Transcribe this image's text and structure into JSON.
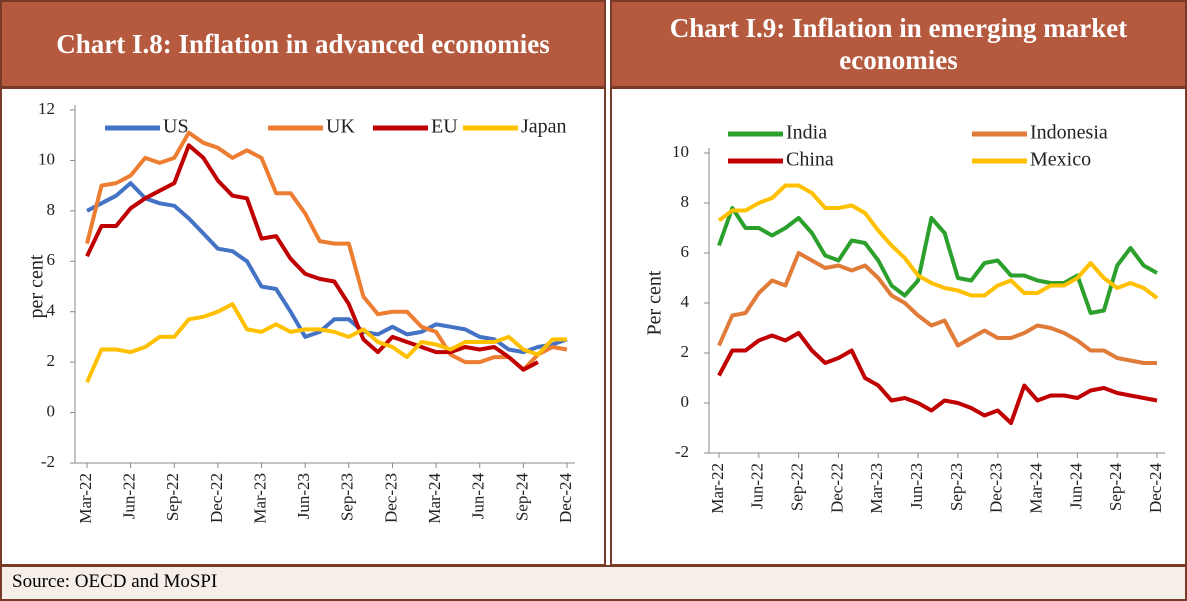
{
  "chart_data": [
    {
      "type": "line",
      "title": "Chart I.8: Inflation in advanced economies",
      "ylabel": "per cent",
      "categories": [
        "Mar-22",
        null,
        null,
        "Jun-22",
        null,
        null,
        "Sep-22",
        null,
        null,
        "Dec-22",
        null,
        null,
        "Mar-23",
        null,
        null,
        "Jun-23",
        null,
        null,
        "Sep-23",
        null,
        null,
        "Dec-23",
        null,
        null,
        "Mar-24",
        null,
        null,
        "Jun-24",
        null,
        null,
        "Sep-24",
        null,
        null,
        "Dec-24"
      ],
      "series": [
        {
          "name": "US",
          "color": "#4472c4",
          "values": [
            8.0,
            8.3,
            8.6,
            9.1,
            8.5,
            8.3,
            8.2,
            7.7,
            7.1,
            6.5,
            6.4,
            6.0,
            5.0,
            4.9,
            4.0,
            3.0,
            3.2,
            3.7,
            3.7,
            3.2,
            3.1,
            3.4,
            3.1,
            3.2,
            3.5,
            3.4,
            3.3,
            3.0,
            2.9,
            2.5,
            2.4,
            2.6,
            2.7,
            2.9
          ]
        },
        {
          "name": "UK",
          "color": "#ed7d31",
          "values": [
            6.7,
            9.0,
            9.1,
            9.4,
            10.1,
            9.9,
            10.1,
            11.1,
            10.7,
            10.5,
            10.1,
            10.4,
            10.1,
            8.7,
            8.7,
            7.9,
            6.8,
            6.7,
            6.7,
            4.6,
            3.9,
            4.0,
            4.0,
            3.4,
            3.2,
            2.3,
            2.0,
            2.0,
            2.2,
            2.2,
            1.7,
            2.3,
            2.6,
            2.5
          ]
        },
        {
          "name": "EU",
          "color": "#c00000",
          "values": [
            6.2,
            7.4,
            7.4,
            8.1,
            8.5,
            8.8,
            9.1,
            10.6,
            10.1,
            9.2,
            8.6,
            8.5,
            6.9,
            7.0,
            6.1,
            5.5,
            5.3,
            5.2,
            4.3,
            2.9,
            2.4,
            3.0,
            2.8,
            2.6,
            2.4,
            2.4,
            2.6,
            2.5,
            2.6,
            2.2,
            1.7,
            2.0,
            null,
            null
          ]
        },
        {
          "name": "Japan",
          "color": "#ffc000",
          "values": [
            1.2,
            2.5,
            2.5,
            2.4,
            2.6,
            3.0,
            3.0,
            3.7,
            3.8,
            4.0,
            4.3,
            3.3,
            3.2,
            3.5,
            3.2,
            3.3,
            3.3,
            3.2,
            3.0,
            3.3,
            2.8,
            2.6,
            2.2,
            2.8,
            2.7,
            2.5,
            2.8,
            2.8,
            2.8,
            3.0,
            2.5,
            2.3,
            2.9,
            2.9
          ]
        }
      ],
      "ylim": [
        -2,
        12
      ],
      "yticks": [
        -2,
        0,
        2,
        4,
        6,
        8,
        10,
        12
      ]
    },
    {
      "type": "line",
      "title": "Chart I.9: Inflation in emerging market economies",
      "ylabel": "Per cent",
      "categories": [
        "Mar-22",
        null,
        null,
        "Jun-22",
        null,
        null,
        "Sep-22",
        null,
        null,
        "Dec-22",
        null,
        null,
        "Mar-23",
        null,
        null,
        "Jun-23",
        null,
        null,
        "Sep-23",
        null,
        null,
        "Dec-23",
        null,
        null,
        "Mar-24",
        null,
        null,
        "Jun-24",
        null,
        null,
        "Sep-24",
        null,
        null,
        "Dec-24"
      ],
      "series": [
        {
          "name": "India",
          "color": "#2ca02c",
          "values": [
            6.3,
            7.8,
            7.0,
            7.0,
            6.7,
            7.0,
            7.4,
            6.8,
            5.9,
            5.7,
            6.5,
            6.4,
            5.7,
            4.7,
            4.3,
            4.9,
            7.4,
            6.8,
            5.0,
            4.9,
            5.6,
            5.7,
            5.1,
            5.1,
            4.9,
            4.8,
            4.8,
            5.1,
            3.6,
            3.7,
            5.5,
            6.2,
            5.5,
            5.2
          ]
        },
        {
          "name": "Indonesia",
          "color": "#e07b39",
          "values": [
            2.3,
            3.5,
            3.6,
            4.4,
            4.9,
            4.7,
            6.0,
            5.7,
            5.4,
            5.5,
            5.3,
            5.5,
            5.0,
            4.3,
            4.0,
            3.5,
            3.1,
            3.3,
            2.3,
            2.6,
            2.9,
            2.6,
            2.6,
            2.8,
            3.1,
            3.0,
            2.8,
            2.5,
            2.1,
            2.1,
            1.8,
            1.7,
            1.6,
            1.6
          ]
        },
        {
          "name": "China",
          "color": "#c00000",
          "values": [
            1.1,
            2.1,
            2.1,
            2.5,
            2.7,
            2.5,
            2.8,
            2.1,
            1.6,
            1.8,
            2.1,
            1.0,
            0.7,
            0.1,
            0.2,
            0.0,
            -0.3,
            0.1,
            0.0,
            -0.2,
            -0.5,
            -0.3,
            -0.8,
            0.7,
            0.1,
            0.3,
            0.3,
            0.2,
            0.5,
            0.6,
            0.4,
            0.3,
            0.2,
            0.1
          ]
        },
        {
          "name": "Mexico",
          "color": "#ffc000",
          "values": [
            7.3,
            7.7,
            7.7,
            8.0,
            8.2,
            8.7,
            8.7,
            8.4,
            7.8,
            7.8,
            7.9,
            7.6,
            6.9,
            6.3,
            5.8,
            5.1,
            4.8,
            4.6,
            4.5,
            4.3,
            4.3,
            4.7,
            4.9,
            4.4,
            4.4,
            4.7,
            4.7,
            5.0,
            5.6,
            5.0,
            4.6,
            4.8,
            4.6,
            4.2
          ]
        }
      ],
      "ylim": [
        -2,
        10
      ],
      "yticks": [
        -2,
        0,
        2,
        4,
        6,
        8,
        10
      ]
    }
  ],
  "source": "Source: OECD and MoSPI"
}
